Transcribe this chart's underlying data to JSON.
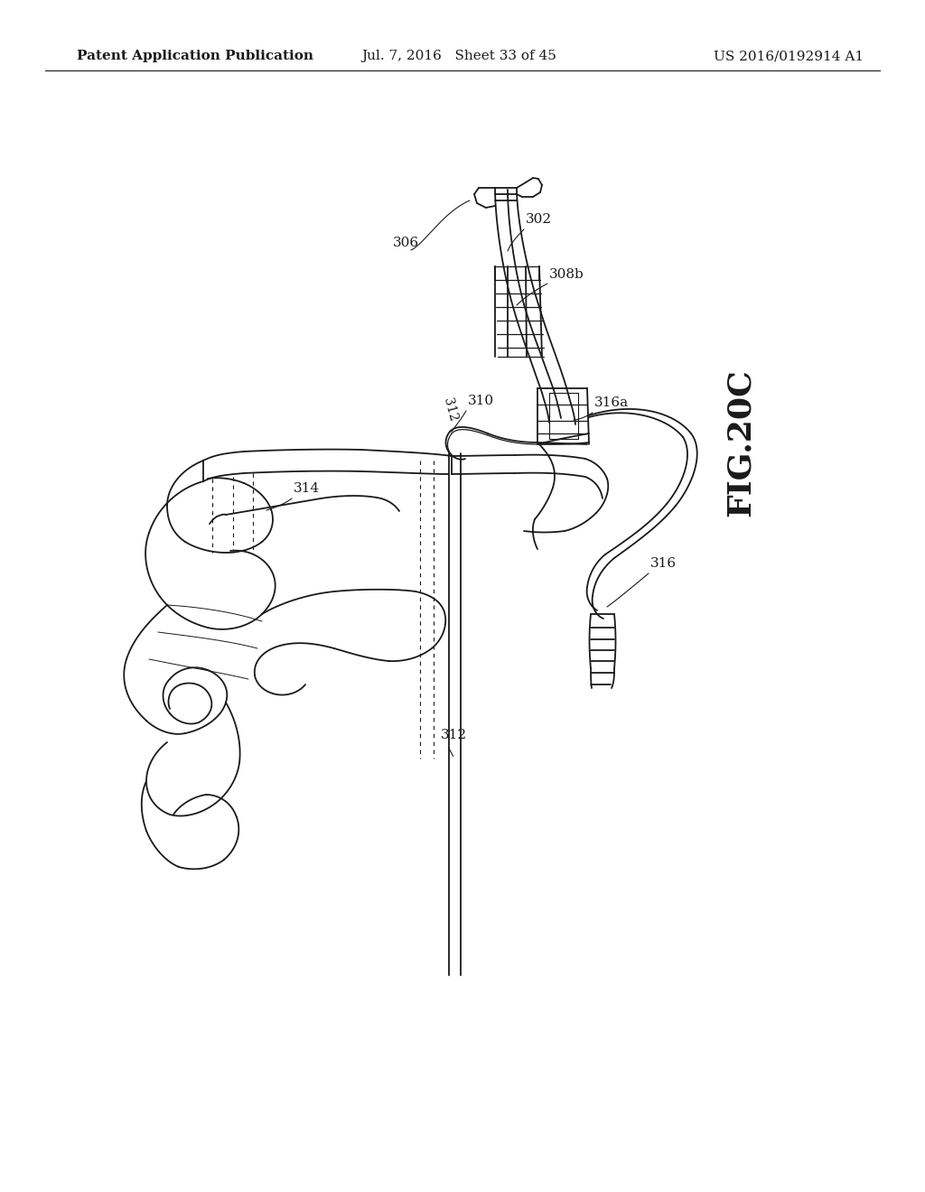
{
  "background_color": "#ffffff",
  "header_left": "Patent Application Publication",
  "header_center": "Jul. 7, 2016   Sheet 33 of 45",
  "header_right": "US 2016/0192914 A1",
  "fig_label": "FIG.20C",
  "line_color": "#1a1a1a",
  "text_color": "#1a1a1a",
  "header_fontsize": 11,
  "label_fontsize": 11,
  "fig_label_fontsize": 26
}
